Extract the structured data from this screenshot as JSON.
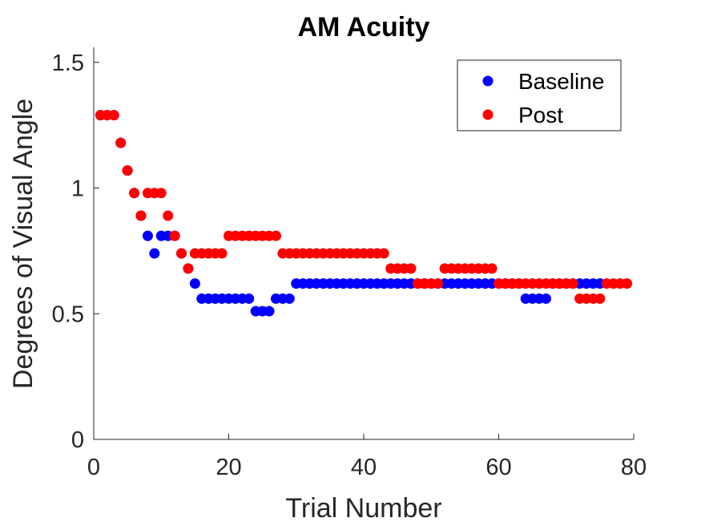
{
  "chart_data": {
    "type": "scatter",
    "title": "AM Acuity",
    "xlabel": "Trial Number",
    "ylabel": "Degrees of Visual Angle",
    "xlim": [
      0,
      80
    ],
    "ylim": [
      0,
      1.5
    ],
    "xticks": [
      0,
      20,
      40,
      60,
      80
    ],
    "xtick_labels": [
      "0",
      "20",
      "40",
      "60",
      "80"
    ],
    "yticks": [
      0,
      0.5,
      1,
      1.5
    ],
    "ytick_labels": [
      "0",
      "0.5",
      "1",
      "1.5"
    ],
    "grid": false,
    "legend_position": "top-right",
    "series": [
      {
        "name": "Baseline",
        "color": "#0000ff",
        "x": [
          1,
          2,
          3,
          4,
          5,
          6,
          7,
          8,
          9,
          10,
          11,
          12,
          13,
          14,
          15,
          16,
          17,
          18,
          19,
          20,
          21,
          22,
          23,
          24,
          25,
          26,
          27,
          28,
          29,
          30,
          31,
          32,
          33,
          34,
          35,
          36,
          37,
          38,
          39,
          40,
          41,
          42,
          43,
          44,
          45,
          46,
          47,
          48,
          49,
          50,
          51,
          52,
          53,
          54,
          55,
          56,
          57,
          58,
          59,
          60,
          61,
          62,
          63,
          64,
          65,
          66,
          67,
          68,
          69,
          70,
          71,
          72,
          73,
          74,
          75
        ],
        "y": [
          1.29,
          1.29,
          1.29,
          1.18,
          1.07,
          0.98,
          0.89,
          0.81,
          0.74,
          0.81,
          0.81,
          0.81,
          0.74,
          0.68,
          0.62,
          0.56,
          0.56,
          0.56,
          0.56,
          0.56,
          0.56,
          0.56,
          0.56,
          0.51,
          0.51,
          0.51,
          0.56,
          0.56,
          0.56,
          0.62,
          0.62,
          0.62,
          0.62,
          0.62,
          0.62,
          0.62,
          0.62,
          0.62,
          0.62,
          0.62,
          0.62,
          0.62,
          0.62,
          0.62,
          0.62,
          0.62,
          0.62,
          0.62,
          0.62,
          0.62,
          0.62,
          0.62,
          0.62,
          0.62,
          0.62,
          0.62,
          0.62,
          0.62,
          0.62,
          0.62,
          0.62,
          0.62,
          0.62,
          0.56,
          0.56,
          0.56,
          0.56,
          0.62,
          0.62,
          0.62,
          0.62,
          0.62,
          0.62,
          0.62,
          0.62
        ]
      },
      {
        "name": "Post",
        "color": "#ff0000",
        "x": [
          1,
          2,
          3,
          4,
          5,
          6,
          7,
          8,
          9,
          10,
          11,
          12,
          13,
          14,
          15,
          16,
          17,
          18,
          19,
          20,
          21,
          22,
          23,
          24,
          25,
          26,
          27,
          28,
          29,
          30,
          31,
          32,
          33,
          34,
          35,
          36,
          37,
          38,
          39,
          40,
          41,
          42,
          43,
          44,
          45,
          46,
          47,
          48,
          49,
          50,
          51,
          52,
          53,
          54,
          55,
          56,
          57,
          58,
          59,
          60,
          61,
          62,
          63,
          64,
          65,
          66,
          67,
          68,
          69,
          70,
          71,
          72,
          73,
          74,
          75,
          76,
          77,
          78,
          79
        ],
        "y": [
          1.29,
          1.29,
          1.29,
          1.18,
          1.07,
          0.98,
          0.89,
          0.98,
          0.98,
          0.98,
          0.89,
          0.81,
          0.74,
          0.68,
          0.74,
          0.74,
          0.74,
          0.74,
          0.74,
          0.81,
          0.81,
          0.81,
          0.81,
          0.81,
          0.81,
          0.81,
          0.81,
          0.74,
          0.74,
          0.74,
          0.74,
          0.74,
          0.74,
          0.74,
          0.74,
          0.74,
          0.74,
          0.74,
          0.74,
          0.74,
          0.74,
          0.74,
          0.74,
          0.68,
          0.68,
          0.68,
          0.68,
          0.62,
          0.62,
          0.62,
          0.62,
          0.68,
          0.68,
          0.68,
          0.68,
          0.68,
          0.68,
          0.68,
          0.68,
          0.62,
          0.62,
          0.62,
          0.62,
          0.62,
          0.62,
          0.62,
          0.62,
          0.62,
          0.62,
          0.62,
          0.62,
          0.56,
          0.56,
          0.56,
          0.56,
          0.62,
          0.62,
          0.62,
          0.62
        ]
      }
    ]
  }
}
